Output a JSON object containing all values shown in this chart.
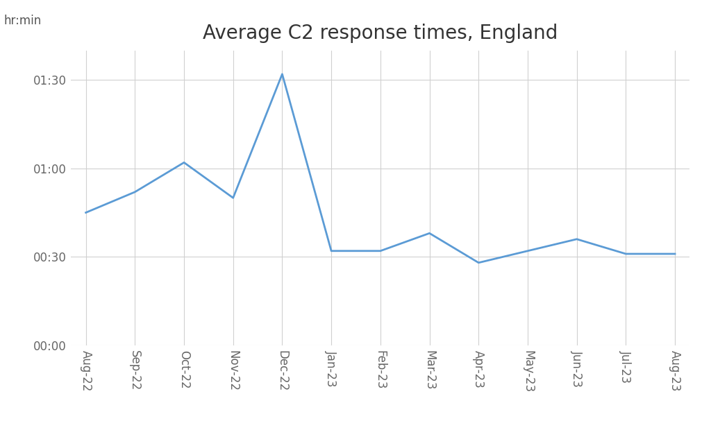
{
  "title": "Average C2 response times, England",
  "ylabel": "hr:min",
  "categories": [
    "Aug-22",
    "Sep-22",
    "Oct-22",
    "Nov-22",
    "Dec-22",
    "Jan-23",
    "Feb-23",
    "Mar-23",
    "Apr-23",
    "May-23",
    "Jun-23",
    "Jul-23",
    "Aug-23"
  ],
  "values_minutes": [
    45,
    52,
    62,
    50,
    92,
    32,
    32,
    38,
    28,
    32,
    36,
    31,
    31
  ],
  "line_color": "#5b9bd5",
  "line_width": 2.0,
  "ylim_minutes": [
    0,
    100
  ],
  "yticks_minutes": [
    0,
    30,
    60,
    90
  ],
  "ytick_labels": [
    "00:00",
    "00:30",
    "01:00",
    "01:30"
  ],
  "background_color": "#ffffff",
  "grid_color": "#d0d0d0",
  "title_fontsize": 20,
  "axis_label_fontsize": 12,
  "tick_fontsize": 12
}
